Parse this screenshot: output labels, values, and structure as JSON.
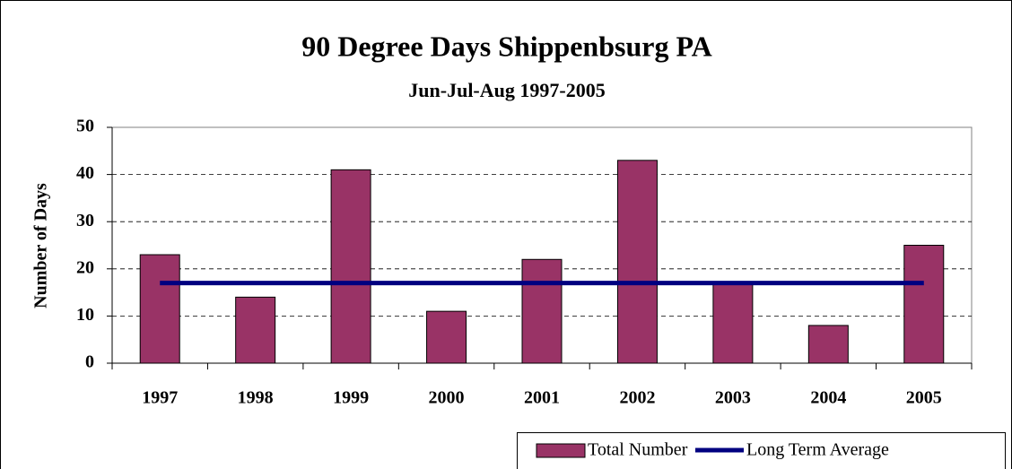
{
  "chart_data": {
    "type": "bar",
    "title": "90 Degree Days Shippenbsurg PA",
    "subtitle": "Jun-Jul-Aug 1997-2005",
    "y_label": "Number of Days",
    "categories": [
      "1997",
      "1998",
      "1999",
      "2000",
      "2001",
      "2002",
      "2003",
      "2004",
      "2005"
    ],
    "series": [
      {
        "name": "Total Number",
        "type": "bar",
        "color": "#993366",
        "values": [
          23,
          14,
          41,
          11,
          22,
          43,
          17,
          8,
          25
        ]
      },
      {
        "name": "Long Term Average",
        "type": "line",
        "color": "#000080",
        "values": [
          17,
          17,
          17,
          17,
          17,
          17,
          17,
          17,
          17
        ]
      }
    ],
    "ylim": [
      0,
      50
    ],
    "yticks": [
      0,
      10,
      20,
      30,
      40,
      50
    ],
    "grid": true,
    "legend": "bottom-right"
  }
}
